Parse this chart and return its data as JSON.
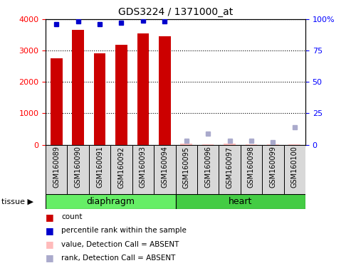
{
  "title": "GDS3224 / 1371000_at",
  "samples": [
    "GSM160089",
    "GSM160090",
    "GSM160091",
    "GSM160092",
    "GSM160093",
    "GSM160094",
    "GSM160095",
    "GSM160096",
    "GSM160097",
    "GSM160098",
    "GSM160099",
    "GSM160100"
  ],
  "count_values": [
    2750,
    3650,
    2920,
    3180,
    3540,
    3450,
    null,
    null,
    null,
    null,
    null,
    null
  ],
  "count_absent": [
    null,
    null,
    null,
    null,
    null,
    null,
    30,
    20,
    25,
    22,
    15,
    18
  ],
  "rank_present": [
    96,
    98,
    96,
    97,
    99,
    98,
    null,
    null,
    null,
    null,
    null,
    null
  ],
  "rank_absent": [
    null,
    null,
    null,
    null,
    null,
    null,
    3,
    9,
    3,
    3,
    2,
    14
  ],
  "tissues": [
    {
      "label": "diaphragm",
      "start": 0,
      "end": 6,
      "color": "#66ee66"
    },
    {
      "label": "heart",
      "start": 6,
      "end": 12,
      "color": "#44cc44"
    }
  ],
  "ylim_left": [
    0,
    4000
  ],
  "ylim_right": [
    0,
    100
  ],
  "yticks_left": [
    0,
    1000,
    2000,
    3000,
    4000
  ],
  "yticks_right": [
    0,
    25,
    50,
    75,
    100
  ],
  "bar_color_present": "#cc0000",
  "bar_color_absent": "#ffbbbb",
  "rank_color_present": "#0000cc",
  "rank_color_absent": "#aaaacc",
  "bar_width": 0.55,
  "background_color": "#ffffff",
  "plot_bg_color": "#ffffff",
  "tick_label_bg": "#d8d8d8",
  "legend_items": [
    {
      "label": "count",
      "color": "#cc0000"
    },
    {
      "label": "percentile rank within the sample",
      "color": "#0000cc"
    },
    {
      "label": "value, Detection Call = ABSENT",
      "color": "#ffbbbb"
    },
    {
      "label": "rank, Detection Call = ABSENT",
      "color": "#aaaacc"
    }
  ]
}
